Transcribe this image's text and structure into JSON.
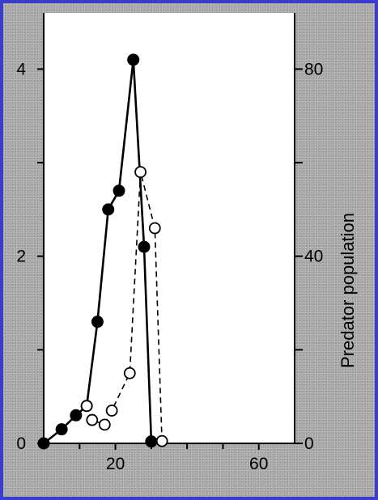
{
  "chart_data": {
    "type": "line",
    "title": "",
    "xlabel": "",
    "ylabel_left": "",
    "ylabel_right": "Predator population",
    "xlim": [
      0,
      70
    ],
    "ylim_left": [
      0,
      4.6
    ],
    "ylim_right": [
      0,
      92
    ],
    "x_ticks": [
      20,
      60
    ],
    "x_minor_ticks": [
      10,
      30,
      40,
      50
    ],
    "y_left_ticks": [
      0,
      2,
      4
    ],
    "y_left_minor_ticks": [
      1,
      3
    ],
    "y_right_ticks": [
      0,
      40,
      80
    ],
    "y_right_minor_ticks": [
      20,
      60
    ],
    "series": [
      {
        "axis": "left",
        "marker": "filled-circle",
        "line": "solid",
        "color": "#000000",
        "points": [
          [
            0,
            0
          ],
          [
            5,
            0.15
          ],
          [
            9,
            0.3
          ],
          [
            12,
            0.4
          ],
          [
            15,
            1.3
          ],
          [
            18,
            2.5
          ],
          [
            21,
            2.7
          ],
          [
            25,
            4.1
          ],
          [
            28,
            2.1
          ],
          [
            30,
            0.02
          ]
        ]
      },
      {
        "axis": "right",
        "marker": "open-circle",
        "line": "dashed",
        "color": "#000000",
        "points": [
          [
            12,
            8
          ],
          [
            13.5,
            5
          ],
          [
            17,
            4
          ],
          [
            19,
            7
          ],
          [
            24,
            15
          ],
          [
            27,
            58
          ],
          [
            31,
            46
          ],
          [
            33,
            0.5
          ]
        ]
      }
    ]
  }
}
